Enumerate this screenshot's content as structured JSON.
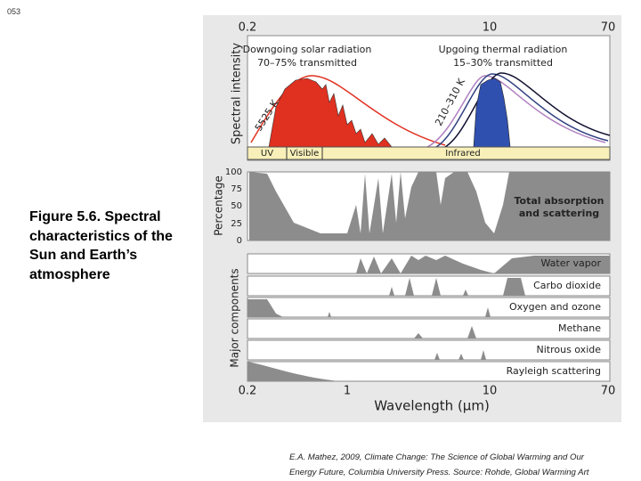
{
  "slide_number": "053",
  "caption": {
    "lines": [
      "Figure 5.6.  Spectral",
      "characteristics of the",
      "Sun and Earth’s",
      "atmosphere"
    ]
  },
  "figure": {
    "top_axis_ticks": [
      "0.2",
      "10",
      "70"
    ],
    "spectral_panel": {
      "y_label": "Spectral intensity",
      "solar_title": "Downgoing solar radiation",
      "solar_subtitle": "70–75% transmitted",
      "thermal_title": "Upgoing thermal radiation",
      "thermal_subtitle": "15–30% transmitted",
      "solar_temp": "5525 K",
      "earth_temp": "210–310 K",
      "bands": [
        "UV",
        "Visible",
        "Infrared"
      ]
    },
    "absorption_panel": {
      "y_label": "Percentage",
      "yticks": [
        "100",
        "75",
        "50",
        "25",
        "0"
      ],
      "label_lines": [
        "Total absorption",
        "and scattering"
      ]
    },
    "components_panel": {
      "y_label": "Major components",
      "components": [
        "Water vapor",
        "Carbo dioxide",
        "Oxygen and ozone",
        "Methane",
        "Nitrous oxide",
        "Rayleigh scattering"
      ]
    },
    "bottom_axis_ticks": [
      "0.2",
      "1",
      "10",
      "70"
    ],
    "x_label": "Wavelength (μm)"
  },
  "credit": {
    "lines": [
      "E.A. Mathez, 2009, Climate Change: The Science of Global Warming and Our",
      "Energy Future, Columbia University Press. Source: Rohde, Global Warming Art"
    ]
  }
}
